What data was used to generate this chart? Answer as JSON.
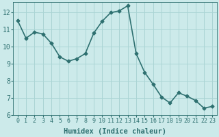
{
  "x": [
    0,
    1,
    2,
    3,
    4,
    5,
    6,
    7,
    8,
    9,
    10,
    11,
    12,
    13,
    14,
    15,
    16,
    17,
    18,
    19,
    20,
    21,
    22,
    23
  ],
  "y": [
    11.55,
    10.5,
    10.85,
    10.75,
    10.2,
    9.4,
    9.15,
    9.3,
    9.6,
    10.8,
    11.5,
    12.0,
    12.1,
    12.4,
    9.6,
    8.5,
    7.8,
    7.05,
    6.7,
    7.3,
    7.1,
    6.85,
    6.4,
    6.5
  ],
  "xlabel": "Humidex (Indice chaleur)",
  "ylim": [
    6,
    12.6
  ],
  "xlim": [
    -0.5,
    23.5
  ],
  "yticks": [
    6,
    7,
    8,
    9,
    10,
    11,
    12
  ],
  "xticks": [
    0,
    1,
    2,
    3,
    4,
    5,
    6,
    7,
    8,
    9,
    10,
    11,
    12,
    13,
    14,
    15,
    16,
    17,
    18,
    19,
    20,
    21,
    22,
    23
  ],
  "line_color": "#2e7070",
  "marker_color": "#2e7070",
  "bg_color": "#cceaea",
  "grid_color": "#aad4d4",
  "tick_label_color": "#2e7070",
  "xlabel_color": "#2e7070",
  "marker": "D",
  "marker_size": 2.5,
  "line_width": 1.2,
  "axis_fontsize": 6,
  "xlabel_fontsize": 7.5
}
